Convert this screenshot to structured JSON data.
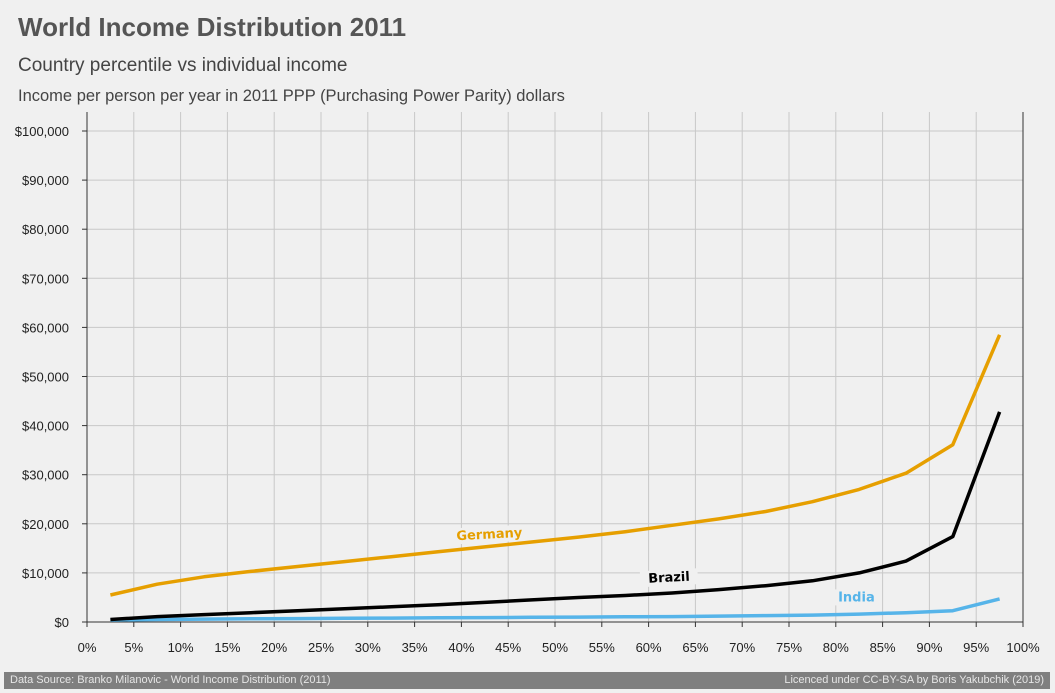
{
  "header": {
    "title": "World Income Distribution 2011",
    "subtitle": "Country percentile vs individual income",
    "units": "Income per person per year in 2011 PPP (Purchasing Power Parity) dollars"
  },
  "footer": {
    "source": "Data Source: Branko Milanovic - World Income Distribution (2011)",
    "license": "Licenced under CC-BY-SA by Boris Yakubchik (2019)"
  },
  "colors": {
    "background": "#f0f0f0",
    "grid": "#c8c8c8",
    "germany": "#e69f00",
    "brazil": "#000000",
    "india": "#56b4e9",
    "footer_bg": "#7f7f7f"
  },
  "chart_data": {
    "type": "line",
    "title": "World Income Distribution 2011",
    "subtitle": "Country percentile vs individual income",
    "xlabel": "",
    "ylabel": "",
    "xlim": [
      0,
      100
    ],
    "ylim": [
      0,
      100000
    ],
    "grid": true,
    "x_ticks": [
      0,
      5,
      10,
      15,
      20,
      25,
      30,
      35,
      40,
      45,
      50,
      55,
      60,
      65,
      70,
      75,
      80,
      85,
      90,
      95,
      100
    ],
    "x_tick_labels": [
      "0%",
      "5%",
      "10%",
      "15%",
      "20%",
      "25%",
      "30%",
      "35%",
      "40%",
      "45%",
      "50%",
      "55%",
      "60%",
      "65%",
      "70%",
      "75%",
      "80%",
      "85%",
      "90%",
      "95%",
      "100%"
    ],
    "y_ticks": [
      0,
      10000,
      20000,
      30000,
      40000,
      50000,
      60000,
      70000,
      80000,
      90000,
      100000
    ],
    "y_tick_labels": [
      "$0",
      "$10,000",
      "$20,000",
      "$30,000",
      "$40,000",
      "$50,000",
      "$60,000",
      "$70,000",
      "$80,000",
      "$90,000",
      "$100,000"
    ],
    "x": [
      2.5,
      7.5,
      12.5,
      17.5,
      22.5,
      27.5,
      32.5,
      37.5,
      42.5,
      47.5,
      52.5,
      57.5,
      62.5,
      67.5,
      72.5,
      77.5,
      82.5,
      87.5,
      92.5,
      97.5
    ],
    "series": [
      {
        "name": "Germany",
        "color": "#e69f00",
        "values": [
          5500,
          7700,
          9200,
          10300,
          11300,
          12300,
          13300,
          14300,
          15300,
          16300,
          17300,
          18400,
          19700,
          21000,
          22500,
          24500,
          27000,
          30300,
          36100,
          58500
        ]
      },
      {
        "name": "Brazil",
        "color": "#000000",
        "values": [
          500,
          1100,
          1500,
          1900,
          2300,
          2700,
          3100,
          3500,
          4000,
          4500,
          5000,
          5400,
          5900,
          6600,
          7400,
          8400,
          10000,
          12400,
          17400,
          42800
        ]
      },
      {
        "name": "India",
        "color": "#56b4e9",
        "values": [
          400,
          500,
          600,
          650,
          700,
          750,
          800,
          850,
          900,
          950,
          1000,
          1050,
          1100,
          1200,
          1300,
          1400,
          1600,
          1900,
          2300,
          4700
        ]
      }
    ],
    "annotations": [
      {
        "text": "Germany",
        "series": "Germany",
        "x": 43,
        "y": 17000,
        "rotate": -3
      },
      {
        "text": "Brazil",
        "series": "Brazil",
        "x": 62.2,
        "y": 8200,
        "rotate": -3
      },
      {
        "text": "India",
        "series": "India",
        "x": 82.2,
        "y": 4200,
        "rotate": 0
      }
    ]
  }
}
